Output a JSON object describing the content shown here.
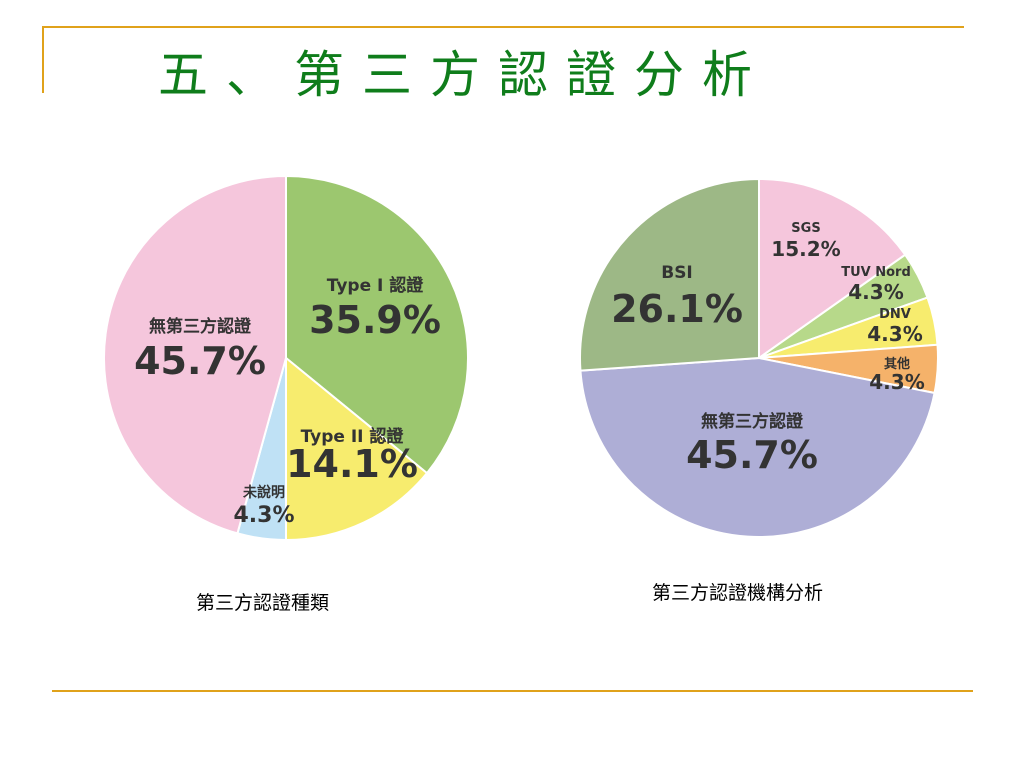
{
  "slide": {
    "title": "五、第三方認證分析"
  },
  "chart_data": [
    {
      "type": "pie",
      "caption": "第三方認證種類",
      "slices": [
        {
          "label": "Type I 認證",
          "percent_text": "35.9%",
          "value": 35.9,
          "color": "#9cc76f"
        },
        {
          "label": "Type II 認證",
          "percent_text": "14.1%",
          "value": 14.1,
          "color": "#f7ec6e"
        },
        {
          "label": "未說明",
          "percent_text": "4.3%",
          "value": 4.3,
          "color": "#bfe1f5"
        },
        {
          "label": "無第三方認證",
          "percent_text": "45.7%",
          "value": 45.7,
          "color": "#f5c6dc"
        }
      ]
    },
    {
      "type": "pie",
      "caption": "第三方認證機構分析",
      "slices": [
        {
          "label": "SGS",
          "percent_text": "15.2%",
          "value": 15.2,
          "color": "#f5c6dc"
        },
        {
          "label": "TUV Nord",
          "percent_text": "4.3%",
          "value": 4.3,
          "color": "#b7d98a"
        },
        {
          "label": "DNV",
          "percent_text": "4.3%",
          "value": 4.3,
          "color": "#f7ec6e"
        },
        {
          "label": "其他",
          "percent_text": "4.3%",
          "value": 4.3,
          "color": "#f5b26a"
        },
        {
          "label": "無第三方認證",
          "percent_text": "45.7%",
          "value": 45.7,
          "color": "#aeaed6"
        },
        {
          "label": "BSI",
          "percent_text": "26.1%",
          "value": 26.1,
          "color": "#9db886"
        }
      ]
    }
  ]
}
